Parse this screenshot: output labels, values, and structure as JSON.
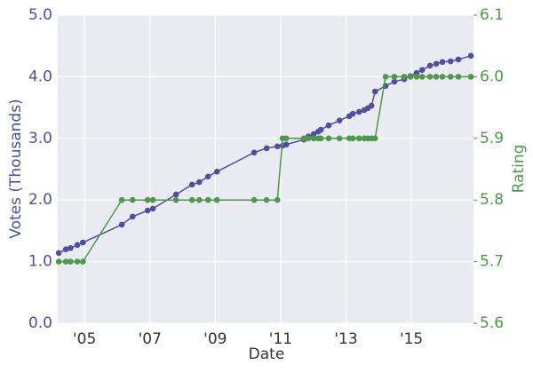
{
  "chart_data": {
    "type": "line",
    "xlabel": "Date",
    "ylabel": "Votes (Thousands)",
    "y2label": "Rating",
    "x": [
      2004.21,
      2004.43,
      2004.57,
      2004.78,
      2004.95,
      2006.14,
      2006.47,
      2006.93,
      2007.09,
      2007.8,
      2008.29,
      2008.51,
      2008.78,
      2009.05,
      2010.19,
      2010.57,
      2010.9,
      2011.06,
      2011.17,
      2011.71,
      2011.85,
      2012.01,
      2012.15,
      2012.23,
      2012.47,
      2012.8,
      2013.1,
      2013.21,
      2013.4,
      2013.56,
      2013.67,
      2013.78,
      2013.89,
      2014.21,
      2014.48,
      2014.78,
      2014.97,
      2015.16,
      2015.33,
      2015.57,
      2015.76,
      2015.95,
      2016.2,
      2016.44,
      2016.82
    ],
    "series": [
      {
        "name": "Votes",
        "color": "#4f4f9e",
        "axis": "y",
        "values": [
          1.14,
          1.2,
          1.22,
          1.27,
          1.31,
          1.6,
          1.73,
          1.83,
          1.86,
          2.09,
          2.25,
          2.29,
          2.38,
          2.46,
          2.77,
          2.84,
          2.87,
          2.88,
          2.9,
          2.98,
          3.03,
          3.07,
          3.11,
          3.14,
          3.21,
          3.29,
          3.36,
          3.4,
          3.43,
          3.46,
          3.49,
          3.53,
          3.76,
          3.85,
          3.92,
          3.96,
          4.01,
          4.06,
          4.11,
          4.18,
          4.21,
          4.24,
          4.25,
          4.28,
          4.34
        ]
      },
      {
        "name": "Rating",
        "color": "#4c9a48",
        "axis": "y2",
        "values": [
          5.7,
          5.7,
          5.7,
          5.7,
          5.7,
          5.8,
          5.8,
          5.8,
          5.8,
          5.8,
          5.8,
          5.8,
          5.8,
          5.8,
          5.8,
          5.8,
          5.8,
          5.9,
          5.9,
          5.9,
          5.9,
          5.9,
          5.9,
          5.9,
          5.9,
          5.9,
          5.9,
          5.9,
          5.9,
          5.9,
          5.9,
          5.9,
          5.9,
          6.0,
          6.0,
          6.0,
          6.0,
          6.0,
          6.0,
          6.0,
          6.0,
          6.0,
          6.0,
          6.0,
          6.0
        ]
      }
    ],
    "xlim": [
      2004.18,
      2016.9
    ],
    "xticks": [
      {
        "value": 2005,
        "label": "'05"
      },
      {
        "value": 2007,
        "label": "'07"
      },
      {
        "value": 2009,
        "label": "'09"
      },
      {
        "value": 2011,
        "label": "'11"
      },
      {
        "value": 2013,
        "label": "'13"
      },
      {
        "value": 2015,
        "label": "'15"
      }
    ],
    "ylim": [
      0,
      5
    ],
    "yticks": [
      {
        "value": 0,
        "label": "0.0"
      },
      {
        "value": 1,
        "label": "1.0"
      },
      {
        "value": 2,
        "label": "2.0"
      },
      {
        "value": 3,
        "label": "3.0"
      },
      {
        "value": 4,
        "label": "4.0"
      },
      {
        "value": 5,
        "label": "5.0"
      }
    ],
    "y2lim": [
      5.6,
      6.1
    ],
    "y2ticks": [
      5.6,
      5.7,
      5.8,
      5.9,
      {
        "value": 6.0,
        "label": "6.0"
      },
      6.1
    ],
    "grid": true,
    "background": "#eaeaf2",
    "grid_color": "#ffffff"
  }
}
